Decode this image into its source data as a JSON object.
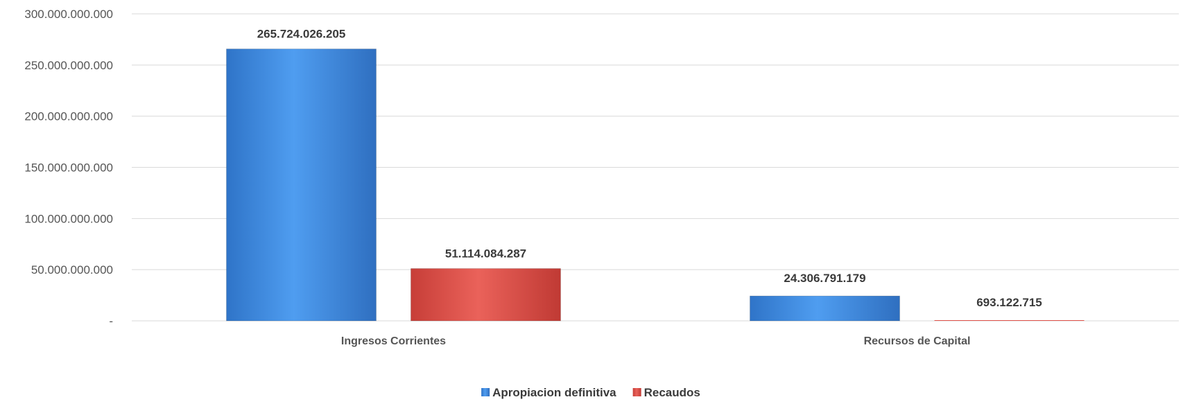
{
  "chart_data": {
    "type": "bar",
    "categories": [
      "Ingresos Corrientes",
      "Recursos de Capital"
    ],
    "series": [
      {
        "name": "Apropiacion definitiva",
        "color": "#3f8fe0",
        "values": [
          265724026205,
          24306791179
        ],
        "labels": [
          "265.724.026.205",
          "24.306.791.179"
        ]
      },
      {
        "name": "Recaudos",
        "color": "#e0524a",
        "values": [
          51114084287,
          693122715
        ],
        "labels": [
          "51.114.084.287",
          "693.122.715"
        ]
      }
    ],
    "ylim": [
      0,
      300000000000
    ],
    "yticks": [
      {
        "value": 0,
        "label": "-"
      },
      {
        "value": 50000000000,
        "label": "50.000.000.000"
      },
      {
        "value": 100000000000,
        "label": "100.000.000.000"
      },
      {
        "value": 150000000000,
        "label": "150.000.000.000"
      },
      {
        "value": 200000000000,
        "label": "200.000.000.000"
      },
      {
        "value": 250000000000,
        "label": "250.000.000.000"
      },
      {
        "value": 300000000000,
        "label": "300.000.000.000"
      }
    ],
    "grid": true,
    "legend": "bottom-center"
  }
}
